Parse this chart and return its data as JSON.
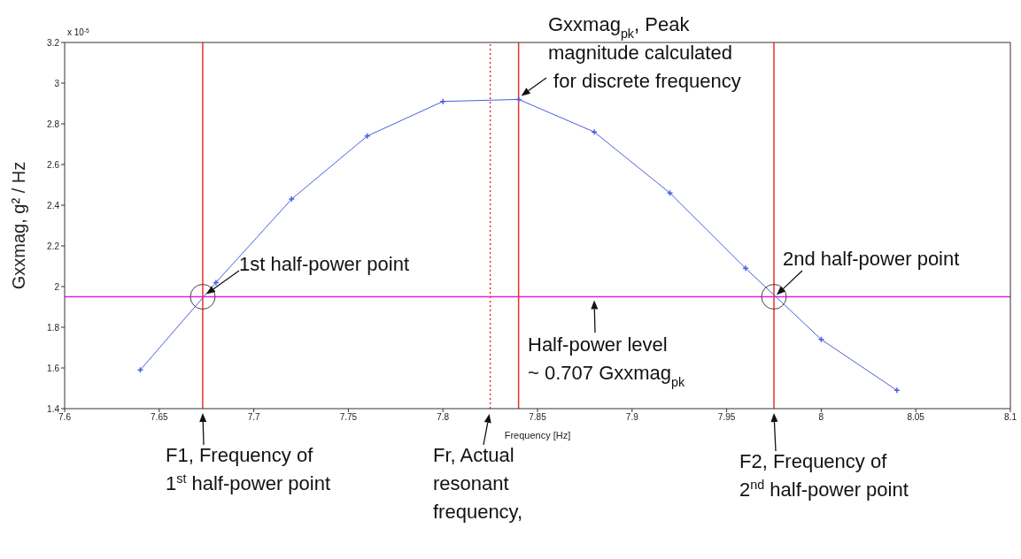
{
  "chart_data": {
    "type": "line",
    "xlabel": "Frequency [Hz]",
    "ylabel": "Gxxmag, g² / Hz",
    "x": [
      7.64,
      7.68,
      7.72,
      7.76,
      7.8,
      7.84,
      7.88,
      7.92,
      7.96,
      8.0,
      8.04
    ],
    "series": [
      {
        "color": "#4a5ee0",
        "values": [
          1.59,
          2.02,
          2.43,
          2.74,
          2.91,
          2.92,
          2.76,
          2.46,
          2.09,
          1.74,
          1.49
        ]
      }
    ],
    "xlim": [
      7.6,
      8.1
    ],
    "xticks": [
      7.6,
      7.65,
      7.7,
      7.75,
      7.8,
      7.85,
      7.9,
      7.95,
      8,
      8.05,
      8.1
    ],
    "ylim": [
      1.4,
      3.2
    ],
    "yticks": [
      1.4,
      1.6,
      1.8,
      2,
      2.2,
      2.4,
      2.6,
      2.8,
      3,
      3.2
    ],
    "grid": false,
    "legend": false,
    "marker": "cross",
    "line_style": "solid",
    "ref_lines": [
      {
        "axis": "y",
        "value": 1.95,
        "color": "#e020e0",
        "line_style": "solid"
      },
      {
        "axis": "x",
        "value": 7.84,
        "color": "#e8322e",
        "line_style": "solid"
      },
      {
        "axis": "x",
        "value": 7.673,
        "color": "#e8322e",
        "line_style": "solid"
      },
      {
        "axis": "x",
        "value": 7.975,
        "color": "#e8322e",
        "line_style": "solid"
      },
      {
        "axis": "x",
        "value": 7.825,
        "color": "#e8322e",
        "line_style": "dotted"
      }
    ],
    "annotations": [
      {
        "text": "Gxxmag$_{pk}$, Peak\nmagnitude calculated\n for discrete frequency",
        "x": 7.84,
        "y": 2.92
      },
      {
        "text": "1st half-power point",
        "x": 7.673,
        "y": 1.95
      },
      {
        "text": "2nd half-power point",
        "x": 7.975,
        "y": 1.95
      },
      {
        "text": "Half-power level\n~ 0.707 Gxxmag$_{pk}$",
        "x": 7.88,
        "y": 1.95
      },
      {
        "text": "F1, Frequency of\n1$^{st}$ half-power point",
        "x": 7.673,
        "y": 1.4
      },
      {
        "text": "Fr, Actual\nresonant\nfrequency,",
        "x": 7.825,
        "y": 1.4
      },
      {
        "text": "F2, Frequency of\n2$^{nd}$ half-power point",
        "x": 7.975,
        "y": 1.4
      },
      "x 10$^{-5}$"
    ]
  }
}
